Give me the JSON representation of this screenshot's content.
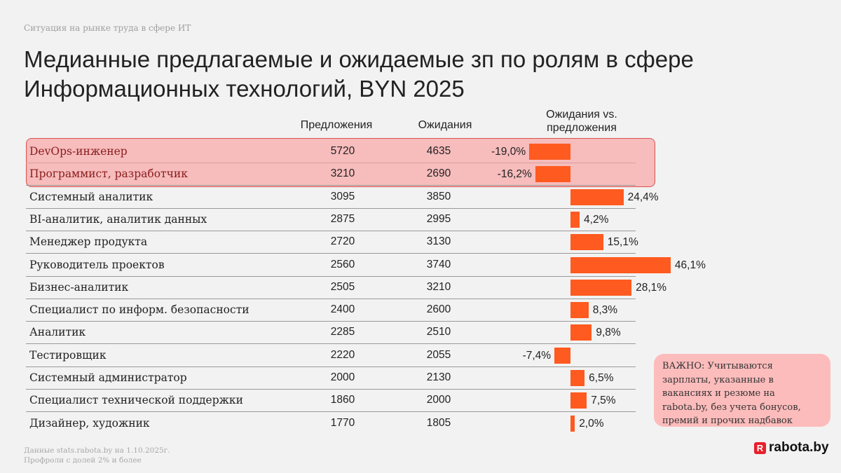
{
  "supertitle": "Ситуация на рынке труда в сфере ИТ",
  "title_line1": "Медианные предлагаемые и ожидаемые зп по ролям в сфере",
  "title_line2": "Информационных технологий, BYN 2025",
  "note": "ВАЖНО: Учитываются зарплаты, указанные в вакансиях и резюме на rabota.by,  без учета бонусов, премий и прочих надбавок",
  "footer_line1": "Данные stats.rabota.by на 1.10.2025г.",
  "footer_line2": "Профроли с долей 2% и более",
  "logo": "rabota.by",
  "colors": {
    "bar": "#ff5a1f",
    "highlight": "#f7bcbc",
    "note_bg": "#fdbcbc"
  },
  "chart_data": {
    "type": "table",
    "columns": [
      "Предложения",
      "Ожидания",
      "Ожидания vs. предложения"
    ],
    "highlighted_rows": [
      "DevOps-инженер",
      "Программист, разработчик"
    ],
    "rows": [
      {
        "role": "DevOps-инженер",
        "offers": "5720",
        "expectations": "4635",
        "diff": -19.0,
        "diff_label": "-19,0%"
      },
      {
        "role": "Программист, разработчик",
        "offers": "3210",
        "expectations": "2690",
        "diff": -16.2,
        "diff_label": "-16,2%"
      },
      {
        "role": "Системный аналитик",
        "offers": "3095",
        "expectations": "3850",
        "diff": 24.4,
        "diff_label": "24,4%"
      },
      {
        "role": "BI-аналитик,  аналитик данных",
        "offers": "2875",
        "expectations": "2995",
        "diff": 4.2,
        "diff_label": "4,2%"
      },
      {
        "role": "Менеджер продукта",
        "offers": "2720",
        "expectations": "3130",
        "diff": 15.1,
        "diff_label": "15,1%"
      },
      {
        "role": "Руководитель проектов",
        "offers": "2560",
        "expectations": "3740",
        "diff": 46.1,
        "diff_label": "46,1%"
      },
      {
        "role": "Бизнес-аналитик",
        "offers": "2505",
        "expectations": "3210",
        "diff": 28.1,
        "diff_label": "28,1%"
      },
      {
        "role": "Специалист по информ. безопасности",
        "offers": "2400",
        "expectations": "2600",
        "diff": 8.3,
        "diff_label": "8,3%"
      },
      {
        "role": "Аналитик",
        "offers": "2285",
        "expectations": "2510",
        "diff": 9.8,
        "diff_label": "9,8%"
      },
      {
        "role": "Тестировщик",
        "offers": "2220",
        "expectations": "2055",
        "diff": -7.4,
        "diff_label": "-7,4%"
      },
      {
        "role": "Системный администратор",
        "offers": "2000",
        "expectations": "2130",
        "diff": 6.5,
        "diff_label": "6,5%"
      },
      {
        "role": "Специалист технической поддержки",
        "offers": "1860",
        "expectations": "2000",
        "diff": 7.5,
        "diff_label": "7,5%"
      },
      {
        "role": "Дизайнер,  художник",
        "offers": "1770",
        "expectations": "1805",
        "diff": 2.0,
        "diff_label": "2,0%"
      }
    ]
  }
}
